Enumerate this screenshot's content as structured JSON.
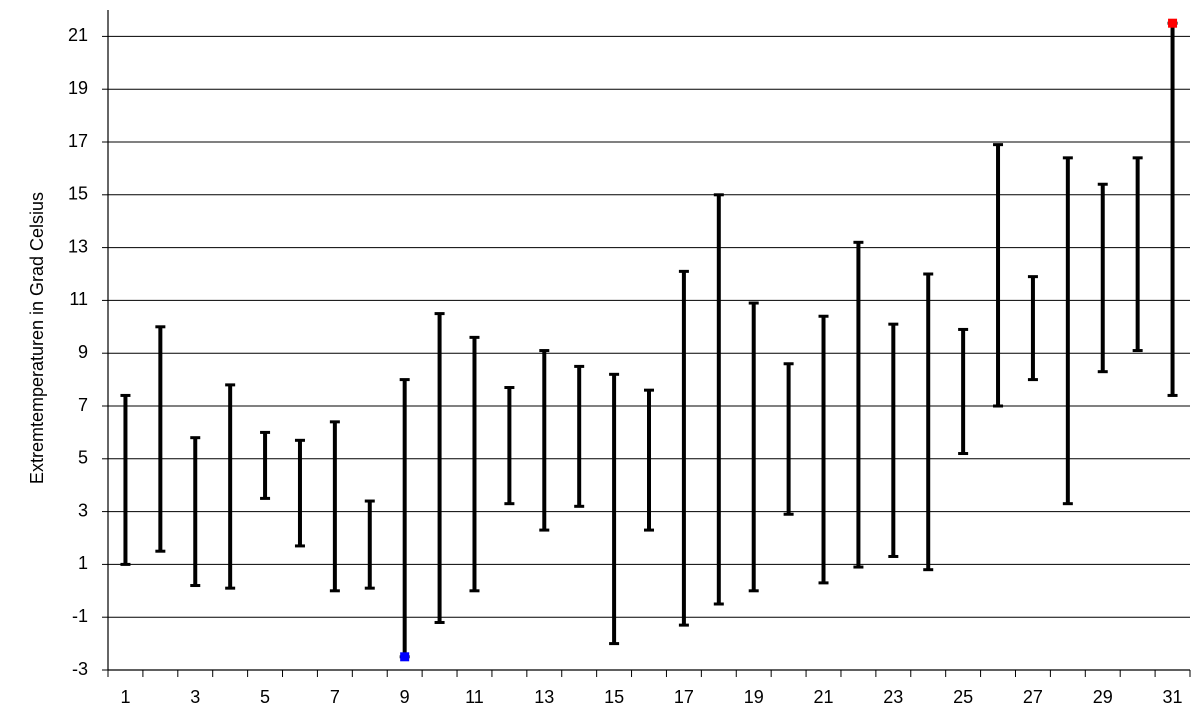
{
  "chart_data": {
    "type": "range-bar",
    "y_label": "Extremtemperaturen in Grad Celsius",
    "categories": [
      1,
      null,
      3,
      null,
      5,
      null,
      7,
      null,
      9,
      null,
      11,
      null,
      13,
      null,
      15,
      null,
      17,
      null,
      19,
      null,
      21,
      null,
      23,
      null,
      25,
      null,
      27,
      null,
      29,
      null,
      31
    ],
    "high": [
      7.4,
      10.0,
      5.8,
      7.8,
      6.0,
      5.7,
      6.4,
      3.4,
      8.0,
      10.5,
      9.6,
      7.7,
      9.1,
      8.5,
      8.2,
      7.6,
      12.1,
      15.0,
      10.9,
      8.6,
      10.4,
      13.2,
      10.1,
      12.0,
      9.9,
      16.9,
      11.9,
      16.4,
      15.4,
      16.4,
      21.5
    ],
    "low": [
      1.0,
      1.5,
      0.2,
      0.1,
      3.5,
      1.7,
      0.0,
      0.1,
      -2.5,
      -1.2,
      0.0,
      3.3,
      2.3,
      3.2,
      -2.0,
      2.3,
      -1.3,
      -0.5,
      0.0,
      2.9,
      0.3,
      0.9,
      1.3,
      0.8,
      5.2,
      7.0,
      8.0,
      3.3,
      8.3,
      9.1,
      7.4
    ],
    "color": "#000000",
    "min_marker_color": "#0000ff",
    "max_marker_color": "#ff0000",
    "ylim": [
      -3,
      22
    ],
    "yticks": [
      -3,
      -1,
      1,
      3,
      5,
      7,
      9,
      11,
      13,
      15,
      17,
      19,
      21
    ],
    "grid": true
  }
}
